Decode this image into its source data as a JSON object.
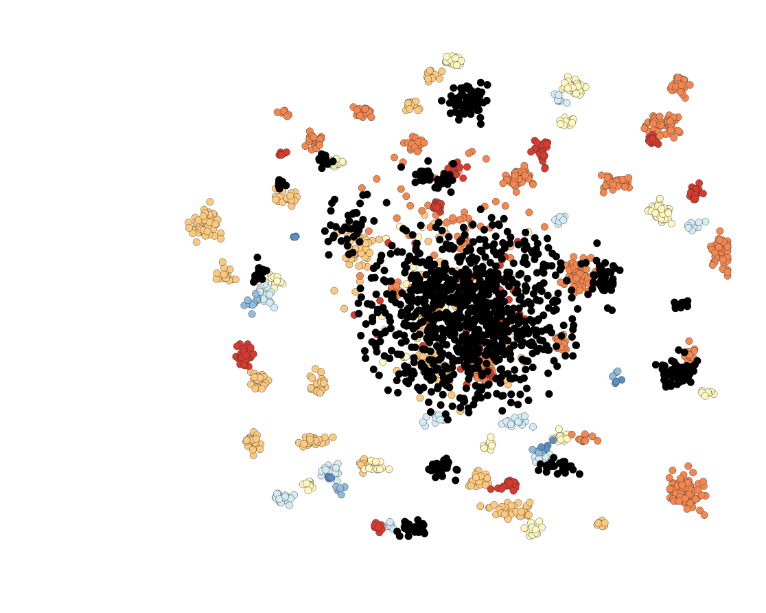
{
  "chart_data": {
    "type": "scatter",
    "title": "",
    "xlabel": "",
    "ylabel": "",
    "axes_visible": false,
    "grid": false,
    "legend": "none",
    "xlim": [
      -100,
      100
    ],
    "ylim": [
      -100,
      100
    ],
    "colors": {
      "black": "#000000",
      "orange": "#f4874f",
      "light_orange": "#fdc97d",
      "red": "#d73a2e",
      "pale_yellow": "#fff7be",
      "light_blue": "#d2ebf4",
      "steel_blue": "#5a8fc2",
      "mid_blue": "#8fbcda"
    },
    "series": [
      {
        "color_key": "black",
        "clusters": [
          {
            "center": [
              8,
              -5
            ],
            "spread": [
              33,
              30
            ],
            "n": 900
          },
          {
            "center": [
              7,
              77
            ],
            "spread": [
              7,
              6
            ],
            "n": 70
          },
          {
            "center": [
              -35,
              30
            ],
            "spread": [
              8,
              8
            ],
            "n": 40
          },
          {
            "center": [
              -5,
              48
            ],
            "spread": [
              7,
              5
            ],
            "n": 35
          },
          {
            "center": [
              55,
              10
            ],
            "spread": [
              5,
              9
            ],
            "n": 40
          },
          {
            "center": [
              82,
              -27
            ],
            "spread": [
              6,
              5
            ],
            "n": 55
          },
          {
            "center": [
              84,
              -1
            ],
            "spread": [
              3,
              2
            ],
            "n": 12
          },
          {
            "center": [
              -3,
              -63
            ],
            "spread": [
              4,
              5
            ],
            "n": 35
          },
          {
            "center": [
              -13,
              -87
            ],
            "spread": [
              4,
              3
            ],
            "n": 25
          },
          {
            "center": [
              40,
              -63
            ],
            "spread": [
              6,
              3
            ],
            "n": 25
          },
          {
            "center": [
              -45,
              55
            ],
            "spread": [
              3,
              3
            ],
            "n": 12
          },
          {
            "center": [
              -68,
              12
            ],
            "spread": [
              4,
              4
            ],
            "n": 14
          },
          {
            "center": [
              -60,
              45
            ],
            "spread": [
              3,
              3
            ],
            "n": 10
          }
        ]
      },
      {
        "color_key": "orange",
        "clusters": [
          {
            "center": [
              78,
              68
            ],
            "spread": [
              5,
              4
            ],
            "n": 55
          },
          {
            "center": [
              85,
              -72
            ],
            "spread": [
              6,
              6
            ],
            "n": 90
          },
          {
            "center": [
              98,
              20
            ],
            "spread": [
              3,
              7
            ],
            "n": 55
          },
          {
            "center": [
              25,
              48
            ],
            "spread": [
              4,
              4
            ],
            "n": 45
          },
          {
            "center": [
              47,
              10
            ],
            "spread": [
              5,
              6
            ],
            "n": 70
          },
          {
            "center": [
              59,
              46
            ],
            "spread": [
              5,
              3
            ],
            "n": 35
          },
          {
            "center": [
              -48,
              62
            ],
            "spread": [
              3,
              3
            ],
            "n": 22
          },
          {
            "center": [
              -30,
              73
            ],
            "spread": [
              3,
              2
            ],
            "n": 20
          },
          {
            "center": [
              -12,
              62
            ],
            "spread": [
              3,
              3
            ],
            "n": 18
          },
          {
            "center": [
              12,
              -25
            ],
            "spread": [
              4,
              5
            ],
            "n": 30
          },
          {
            "center": [
              -19,
              5
            ],
            "spread": [
              2,
              3
            ],
            "n": 12
          },
          {
            "center": [
              41,
              -15
            ],
            "spread": [
              3,
              4
            ],
            "n": 20
          },
          {
            "center": [
              48,
              -52
            ],
            "spread": [
              3,
              2
            ],
            "n": 12
          },
          {
            "center": [
              -59,
              73
            ],
            "spread": [
              2,
              2
            ],
            "n": 6
          },
          {
            "center": [
              82,
              83
            ],
            "spread": [
              4,
              4
            ],
            "n": 25
          },
          {
            "center": [
              87,
              -20
            ],
            "spread": [
              2,
              4
            ],
            "n": 12
          },
          {
            "center": [
              0,
              30
            ],
            "spread": [
              30,
              30
            ],
            "n": 60
          }
        ]
      },
      {
        "color_key": "light_orange",
        "clusters": [
          {
            "center": [
              -87,
              29
            ],
            "spread": [
              5,
              7
            ],
            "n": 60
          },
          {
            "center": [
              -68,
              -30
            ],
            "spread": [
              3,
              3
            ],
            "n": 30
          },
          {
            "center": [
              -70,
              -54
            ],
            "spread": [
              2,
              4
            ],
            "n": 25
          },
          {
            "center": [
              -47,
              -53
            ],
            "spread": [
              5,
              2
            ],
            "n": 30
          },
          {
            "center": [
              -32,
              20
            ],
            "spread": [
              5,
              6
            ],
            "n": 45
          },
          {
            "center": [
              -58,
              40
            ],
            "spread": [
              4,
              3
            ],
            "n": 20
          },
          {
            "center": [
              -13,
              75
            ],
            "spread": [
              3,
              2
            ],
            "n": 15
          },
          {
            "center": [
              -5,
              -25
            ],
            "spread": [
              5,
              5
            ],
            "n": 40
          },
          {
            "center": [
              22,
              -80
            ],
            "spread": [
              6,
              3
            ],
            "n": 40
          },
          {
            "center": [
              10,
              -68
            ],
            "spread": [
              4,
              3
            ],
            "n": 25
          },
          {
            "center": [
              -47,
              -30
            ],
            "spread": [
              3,
              4
            ],
            "n": 20
          },
          {
            "center": [
              -30,
              -62
            ],
            "spread": [
              2,
              3
            ],
            "n": 10
          },
          {
            "center": [
              -80,
              10
            ],
            "spread": [
              4,
              3
            ],
            "n": 15
          },
          {
            "center": [
              55,
              -85
            ],
            "spread": [
              2,
              2
            ],
            "n": 8
          },
          {
            "center": [
              -5,
              87
            ],
            "spread": [
              3,
              3
            ],
            "n": 12
          },
          {
            "center": [
              0,
              -5
            ],
            "spread": [
              34,
              34
            ],
            "n": 70
          }
        ]
      },
      {
        "color_key": "red",
        "clusters": [
          {
            "center": [
              -73,
              -20
            ],
            "spread": [
              3,
              4
            ],
            "n": 40
          },
          {
            "center": [
              -4,
              37
            ],
            "spread": [
              2,
              2
            ],
            "n": 20
          },
          {
            "center": [
              34,
              58
            ],
            "spread": [
              3,
              4
            ],
            "n": 25
          },
          {
            "center": [
              88,
              41
            ],
            "spread": [
              2,
              3
            ],
            "n": 20
          },
          {
            "center": [
              73,
              62
            ],
            "spread": [
              2,
              2
            ],
            "n": 15
          },
          {
            "center": [
              -25,
              -86
            ],
            "spread": [
              2,
              2
            ],
            "n": 10
          },
          {
            "center": [
              -59,
              57
            ],
            "spread": [
              2,
              1
            ],
            "n": 8
          },
          {
            "center": [
              22,
              -70
            ],
            "spread": [
              3,
              2
            ],
            "n": 20
          },
          {
            "center": [
              3,
              50
            ],
            "spread": [
              4,
              3
            ],
            "n": 15
          },
          {
            "center": [
              15,
              -28
            ],
            "spread": [
              2,
              2
            ],
            "n": 8
          },
          {
            "center": [
              0,
              0
            ],
            "spread": [
              30,
              30
            ],
            "n": 35
          }
        ]
      },
      {
        "color_key": "pale_yellow",
        "clusters": [
          {
            "center": [
              2,
              92
            ],
            "spread": [
              3,
              2
            ],
            "n": 25
          },
          {
            "center": [
              45,
              82
            ],
            "spread": [
              4,
              3
            ],
            "n": 40
          },
          {
            "center": [
              76,
              35
            ],
            "spread": [
              4,
              4
            ],
            "n": 40
          },
          {
            "center": [
              -40,
              53
            ],
            "spread": [
              3,
              2
            ],
            "n": 20
          },
          {
            "center": [
              -26,
              -63
            ],
            "spread": [
              3,
              2
            ],
            "n": 15
          },
          {
            "center": [
              30,
              -87
            ],
            "spread": [
              2,
              2
            ],
            "n": 18
          },
          {
            "center": [
              -50,
              -70
            ],
            "spread": [
              2,
              2
            ],
            "n": 10
          },
          {
            "center": [
              41,
              -52
            ],
            "spread": [
              3,
              2
            ],
            "n": 15
          },
          {
            "center": [
              93,
              -35
            ],
            "spread": [
              2,
              1
            ],
            "n": 10
          },
          {
            "center": [
              42,
              69
            ],
            "spread": [
              3,
              2
            ],
            "n": 12
          },
          {
            "center": [
              -63,
              8
            ],
            "spread": [
              3,
              2
            ],
            "n": 12
          },
          {
            "center": [
              15,
              -55
            ],
            "spread": [
              3,
              2
            ],
            "n": 10
          },
          {
            "center": [
              0,
              0
            ],
            "spread": [
              32,
              32
            ],
            "n": 30
          }
        ]
      },
      {
        "color_key": "light_blue",
        "clusters": [
          {
            "center": [
              -59,
              -75
            ],
            "spread": [
              3,
              2
            ],
            "n": 20
          },
          {
            "center": [
              -42,
              -65
            ],
            "spread": [
              3,
              3
            ],
            "n": 20
          },
          {
            "center": [
              -66,
              2
            ],
            "spread": [
              4,
              4
            ],
            "n": 20
          },
          {
            "center": [
              40,
              32
            ],
            "spread": [
              3,
              2
            ],
            "n": 10
          },
          {
            "center": [
              88,
              29
            ],
            "spread": [
              3,
              2
            ],
            "n": 10
          },
          {
            "center": [
              -21,
              -85
            ],
            "spread": [
              2,
              2
            ],
            "n": 8
          },
          {
            "center": [
              -5,
              -45
            ],
            "spread": [
              3,
              3
            ],
            "n": 12
          },
          {
            "center": [
              25,
              -45
            ],
            "spread": [
              4,
              3
            ],
            "n": 15
          },
          {
            "center": [
              40,
              78
            ],
            "spread": [
              3,
              2
            ],
            "n": 8
          },
          {
            "center": [
              35,
              -60
            ],
            "spread": [
              4,
              3
            ],
            "n": 12
          }
        ]
      },
      {
        "color_key": "steel_blue",
        "clusters": [
          {
            "center": [
              -55,
              25
            ],
            "spread": [
              2,
              2
            ],
            "n": 3
          },
          {
            "center": [
              -42,
              -67
            ],
            "spread": [
              2,
              2
            ],
            "n": 4
          },
          {
            "center": [
              35,
              -55
            ],
            "spread": [
              3,
              2
            ],
            "n": 4
          },
          {
            "center": [
              62,
              -30
            ],
            "spread": [
              2,
              2
            ],
            "n": 3
          }
        ]
      },
      {
        "color_key": "mid_blue",
        "clusters": [
          {
            "center": [
              -70,
              0
            ],
            "spread": [
              4,
              4
            ],
            "n": 10
          },
          {
            "center": [
              -5,
              12
            ],
            "spread": [
              2,
              2
            ],
            "n": 3
          },
          {
            "center": [
              -40,
              -72
            ],
            "spread": [
              3,
              2
            ],
            "n": 6
          },
          {
            "center": [
              33,
              -57
            ],
            "spread": [
              3,
              2
            ],
            "n": 5
          },
          {
            "center": [
              60,
              -28
            ],
            "spread": [
              2,
              2
            ],
            "n": 4
          }
        ]
      }
    ]
  }
}
